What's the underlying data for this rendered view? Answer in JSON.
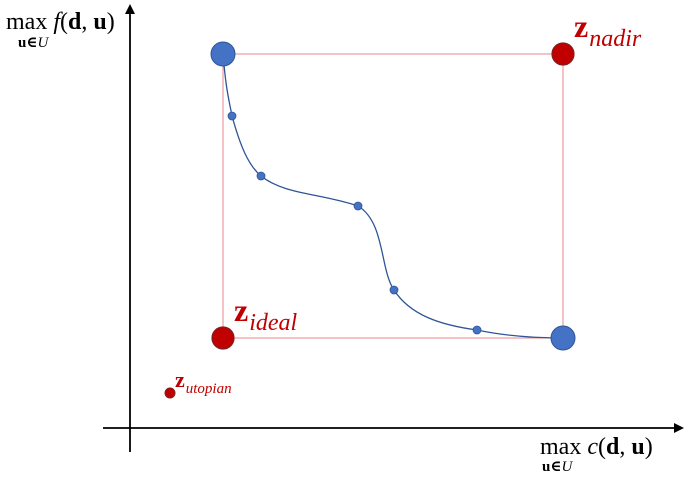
{
  "axes": {
    "y_label": {
      "prefix": "max ",
      "func": "f",
      "open": "(",
      "arg1": "d",
      "comma": ", ",
      "arg2": "u",
      "close": ")",
      "sub_var": "u",
      "sub_in": "∈",
      "sub_set": "U"
    },
    "x_label": {
      "prefix": "max ",
      "func": "c",
      "open": "(",
      "arg1": "d",
      "comma": ", ",
      "arg2": "u",
      "close": ")",
      "sub_var": "u",
      "sub_in": "∈",
      "sub_set": "U"
    }
  },
  "points": {
    "nadir": {
      "symbol": "z",
      "subscript": "nadir"
    },
    "ideal": {
      "symbol": "z",
      "subscript": "ideal"
    },
    "utopian": {
      "symbol": "z",
      "subscript": "utopian"
    }
  },
  "colors": {
    "blue_point": "#4472c4",
    "red_point": "#c00000",
    "box": "#e88a8a",
    "curve": "#2e5597",
    "axis": "#000000",
    "label_red": "#c00000"
  }
}
